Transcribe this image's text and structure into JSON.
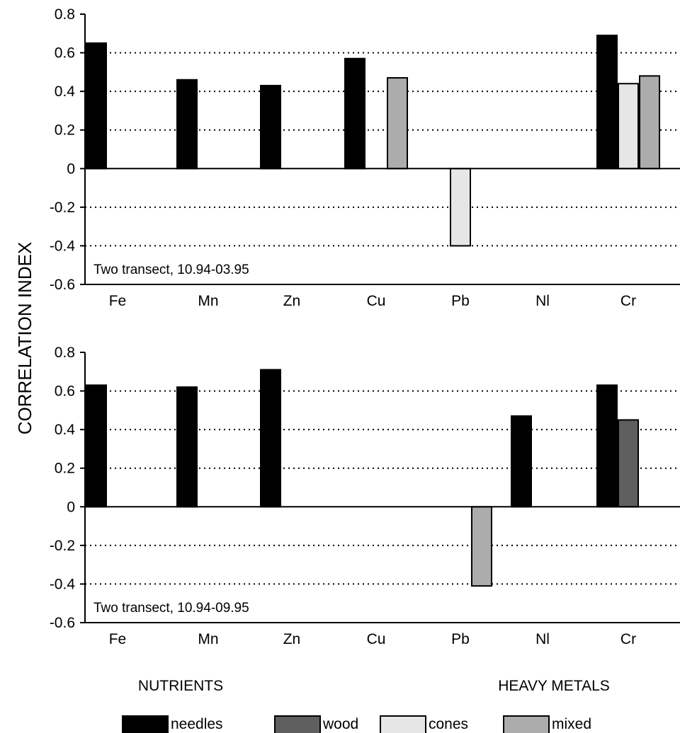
{
  "ylabel": "CORRELATION INDEX",
  "group_labels": {
    "left": "NUTRIENTS",
    "right": "HEAVY METALS"
  },
  "legend": [
    {
      "key": "needles",
      "label": "needles",
      "color": "#000000"
    },
    {
      "key": "wood",
      "label": "wood",
      "color": "#5f5f5f"
    },
    {
      "key": "cones",
      "label": "cones",
      "color": "#e6e6e6"
    },
    {
      "key": "mixed",
      "label": "mixed",
      "color": "#acacac"
    }
  ],
  "chart_data": [
    {
      "type": "bar",
      "annotation": "Two transect, 10.94-03.95",
      "categories": [
        "Fe",
        "Mn",
        "Zn",
        "Cu",
        "Pb",
        "Nl",
        "Cr"
      ],
      "ylim": [
        -0.6,
        0.8
      ],
      "yticks": [
        "0.8",
        "0.6",
        "0.4",
        "0.2",
        "0",
        "-0.2",
        "-0.4",
        "-0.6"
      ],
      "grid": "dotted horizontal at 0.6, 0.4, 0.2, -0.2, -0.4",
      "series": [
        {
          "name": "needles",
          "values": [
            0.65,
            0.46,
            0.43,
            0.57,
            null,
            null,
            0.69
          ]
        },
        {
          "name": "wood",
          "values": [
            null,
            null,
            null,
            null,
            null,
            null,
            null
          ]
        },
        {
          "name": "cones",
          "values": [
            null,
            null,
            null,
            null,
            -0.4,
            null,
            0.44
          ]
        },
        {
          "name": "mixed",
          "values": [
            null,
            null,
            null,
            0.47,
            null,
            null,
            0.48
          ]
        }
      ]
    },
    {
      "type": "bar",
      "annotation": "Two transect, 10.94-09.95",
      "categories": [
        "Fe",
        "Mn",
        "Zn",
        "Cu",
        "Pb",
        "Nl",
        "Cr"
      ],
      "ylim": [
        -0.6,
        0.8
      ],
      "yticks": [
        "0.8",
        "0.6",
        "0.4",
        "0.2",
        "0",
        "-0.2",
        "-0.4",
        "-0.6"
      ],
      "grid": "dotted horizontal at 0.6, 0.4, 0.2, -0.2, -0.4",
      "series": [
        {
          "name": "needles",
          "values": [
            0.63,
            0.62,
            0.71,
            null,
            null,
            0.47,
            0.63
          ]
        },
        {
          "name": "wood",
          "values": [
            null,
            null,
            null,
            null,
            null,
            null,
            0.45
          ]
        },
        {
          "name": "cones",
          "values": [
            null,
            null,
            null,
            null,
            null,
            null,
            null
          ]
        },
        {
          "name": "mixed",
          "values": [
            null,
            null,
            null,
            null,
            -0.41,
            null,
            null
          ]
        }
      ]
    }
  ]
}
